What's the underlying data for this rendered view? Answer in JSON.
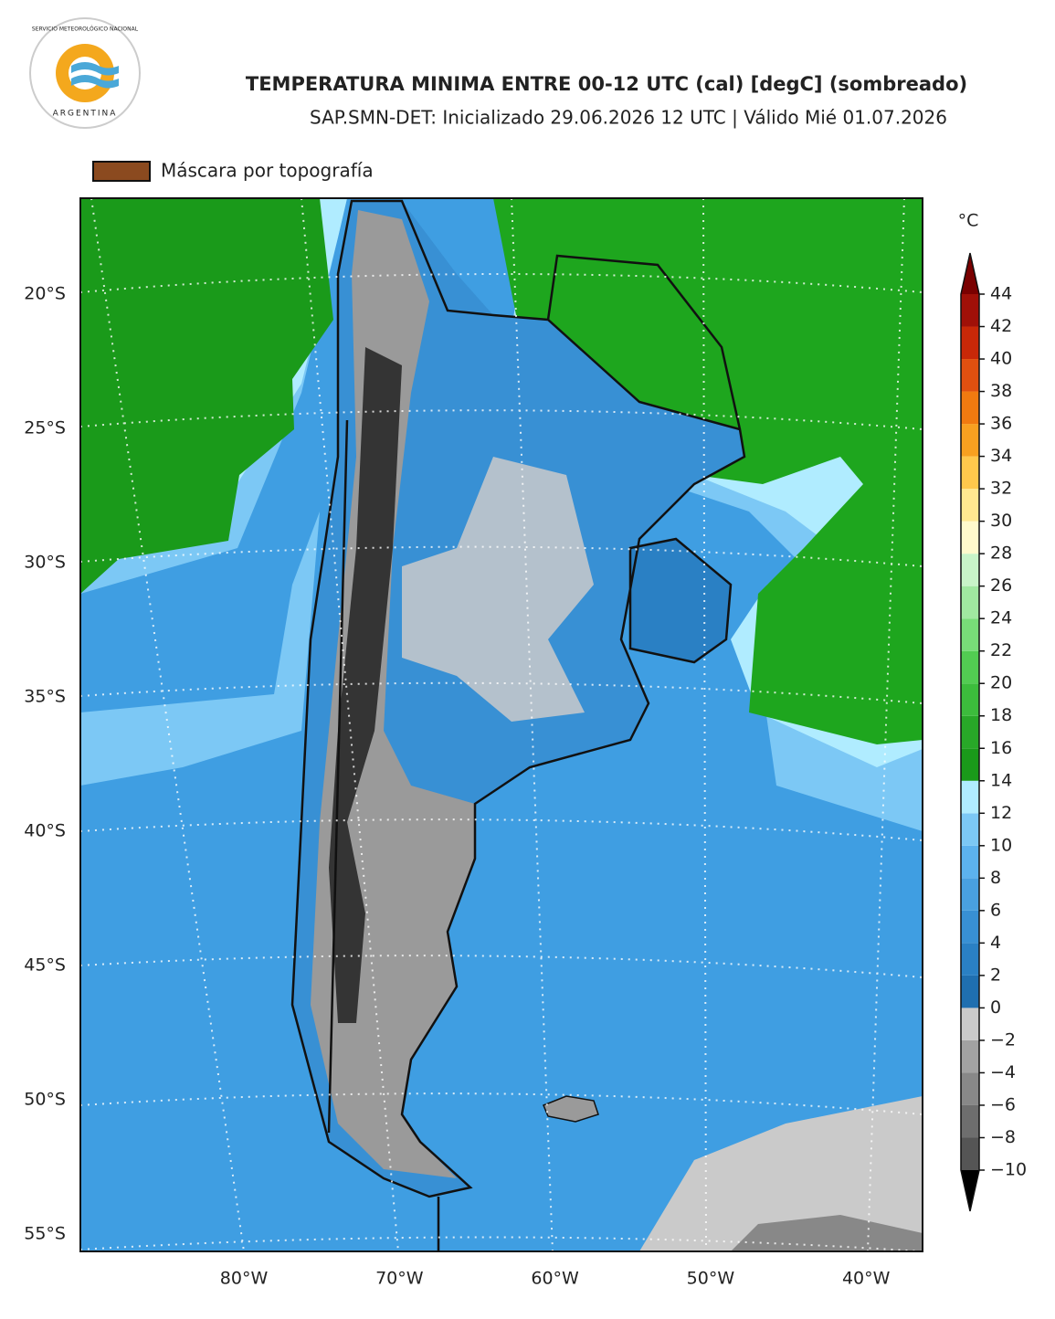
{
  "logo": {
    "top_text": "SERVICIO METEOROLÓGICO NACIONAL",
    "bottom_text": "ARGENTINA"
  },
  "title": "TEMPERATURA MINIMA ENTRE 00-12 UTC (cal) [degC] (sombreado)",
  "subtitle": "SAP.SMN-DET: Inicializado 29.06.2026 12 UTC | Válido Mié 01.07.2026",
  "mask_legend": {
    "label": "Máscara por topografía",
    "color": "#8b4a1f"
  },
  "lat_labels": [
    {
      "value": -20,
      "label": "20°S"
    },
    {
      "value": -25,
      "label": "25°S"
    },
    {
      "value": -30,
      "label": "30°S"
    },
    {
      "value": -35,
      "label": "35°S"
    },
    {
      "value": -40,
      "label": "40°S"
    },
    {
      "value": -45,
      "label": "45°S"
    },
    {
      "value": -50,
      "label": "50°S"
    },
    {
      "value": -55,
      "label": "55°S"
    }
  ],
  "lon_labels": [
    {
      "value": -80,
      "label": "80°W"
    },
    {
      "value": -70,
      "label": "70°W"
    },
    {
      "value": -60,
      "label": "60°W"
    },
    {
      "value": -50,
      "label": "50°W"
    },
    {
      "value": -40,
      "label": "40°W"
    }
  ],
  "colorbar": {
    "unit": "°C",
    "ticks": [
      {
        "value": -10,
        "label": "−10"
      },
      {
        "value": -8,
        "label": "−8"
      },
      {
        "value": -6,
        "label": "−6"
      },
      {
        "value": -4,
        "label": "−4"
      },
      {
        "value": -2,
        "label": "−2"
      },
      0,
      2,
      4,
      6,
      8,
      10,
      12,
      14,
      16,
      18,
      20,
      22,
      24,
      26,
      28,
      30,
      32,
      34,
      36,
      38,
      40,
      42,
      44
    ],
    "colors": [
      "#555555",
      "#6e6e6e",
      "#888888",
      "#a2a2a2",
      "#cacaca",
      "#1f6fb0",
      "#2a80c4",
      "#3890d4",
      "#49a0e0",
      "#5cb2ee",
      "#7cc8f5",
      "#b0ecff",
      "#1a9a1a",
      "#28a828",
      "#3cbc3c",
      "#52cc52",
      "#78dc78",
      "#a0e8a0",
      "#c8f4c8",
      "#fffacc",
      "#ffe890",
      "#ffc84c",
      "#f8a020",
      "#f07a10",
      "#e05010",
      "#c82808",
      "#a01008"
    ],
    "under_color": "#000000",
    "over_color": "#7a0000"
  }
}
